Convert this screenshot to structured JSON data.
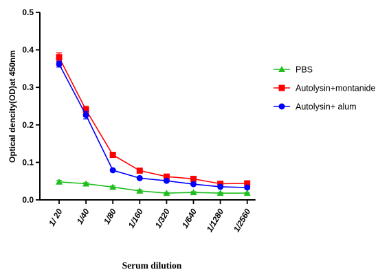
{
  "chart_data": {
    "type": "line",
    "xlabel": "Serum dilution",
    "ylabel": "Optical dencity(OD)at 450nm",
    "ylim": [
      0,
      0.5
    ],
    "y_ticks": [
      "0.0",
      "0.1",
      "0.2",
      "0.3",
      "0.4",
      "0.5"
    ],
    "categories": [
      "1/ 20",
      "1/40",
      "1/80",
      "1/160",
      "1/320",
      "1/640",
      "1/1280",
      "1/2560"
    ],
    "legend_position": "right",
    "series": [
      {
        "name": "PBS",
        "color": "#1fbf1f",
        "marker": "triangle",
        "values": [
          0.048,
          0.043,
          0.034,
          0.024,
          0.018,
          0.02,
          0.018,
          0.018
        ],
        "errors": [
          0.004,
          0.003,
          0.003,
          0.003,
          0.002,
          0.002,
          0.002,
          0.002
        ]
      },
      {
        "name": "Autolysin+montanide",
        "color": "#ff0000",
        "marker": "square",
        "values": [
          0.38,
          0.24,
          0.12,
          0.078,
          0.062,
          0.056,
          0.043,
          0.044
        ],
        "errors": [
          0.012,
          0.01,
          0.007,
          0.004,
          0.003,
          0.003,
          0.002,
          0.002
        ]
      },
      {
        "name": "Autolysin+ alum",
        "color": "#0000ff",
        "marker": "circle",
        "values": [
          0.362,
          0.226,
          0.079,
          0.058,
          0.051,
          0.042,
          0.035,
          0.033
        ],
        "errors": [
          0.008,
          0.01,
          0.003,
          0.003,
          0.002,
          0.002,
          0.002,
          0.002
        ]
      }
    ]
  }
}
